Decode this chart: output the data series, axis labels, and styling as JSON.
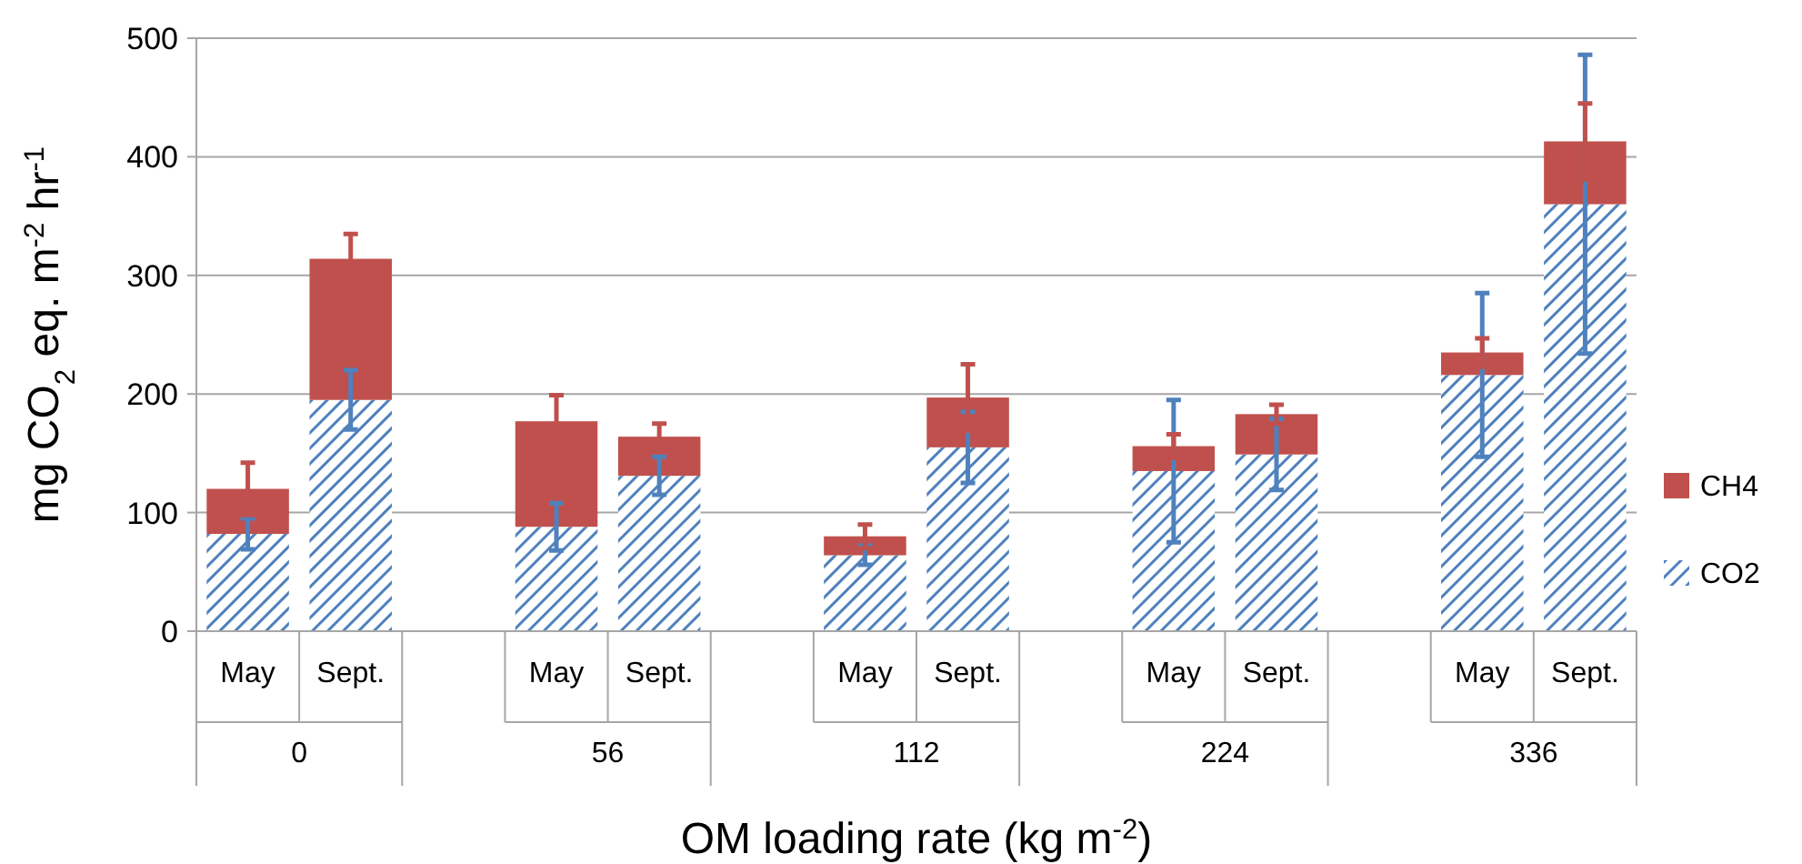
{
  "chart_data": {
    "type": "bar",
    "stacked": true,
    "xlabel": "OM loading rate (kg m$^{-2}$)",
    "ylabel": "mg CO$_{2}$ eq. m$^{-2}$ hr$^{-1}$",
    "categories": [
      "May",
      "Sept.",
      null,
      "May",
      "Sept.",
      null,
      "May",
      "Sept.",
      null,
      "May",
      "Sept.",
      null,
      "May",
      "Sept."
    ],
    "series": [
      {
        "name": "CO2",
        "color": "#4f81bd",
        "values": [
          82,
          195,
          null,
          88,
          131,
          null,
          64,
          155,
          null,
          135,
          149,
          null,
          216,
          360
        ],
        "errors": [
          13,
          25,
          null,
          20,
          16,
          null,
          8,
          30,
          null,
          60,
          30,
          null,
          69,
          126
        ]
      },
      {
        "name": "CH4",
        "color": "#c0504d",
        "values": [
          38,
          119,
          null,
          89,
          33,
          null,
          16,
          42,
          null,
          21,
          34,
          null,
          19,
          53
        ],
        "errors": [
          22,
          21,
          null,
          22,
          11,
          null,
          10,
          28,
          null,
          10,
          8,
          null,
          12,
          32
        ]
      }
    ],
    "annotations": [
      "0",
      "56",
      "112",
      "224",
      "336"
    ],
    "ylim": [
      0,
      500
    ],
    "yticks": [
      0,
      100,
      200,
      300,
      400,
      500
    ],
    "grid": "y",
    "legend": "right"
  }
}
